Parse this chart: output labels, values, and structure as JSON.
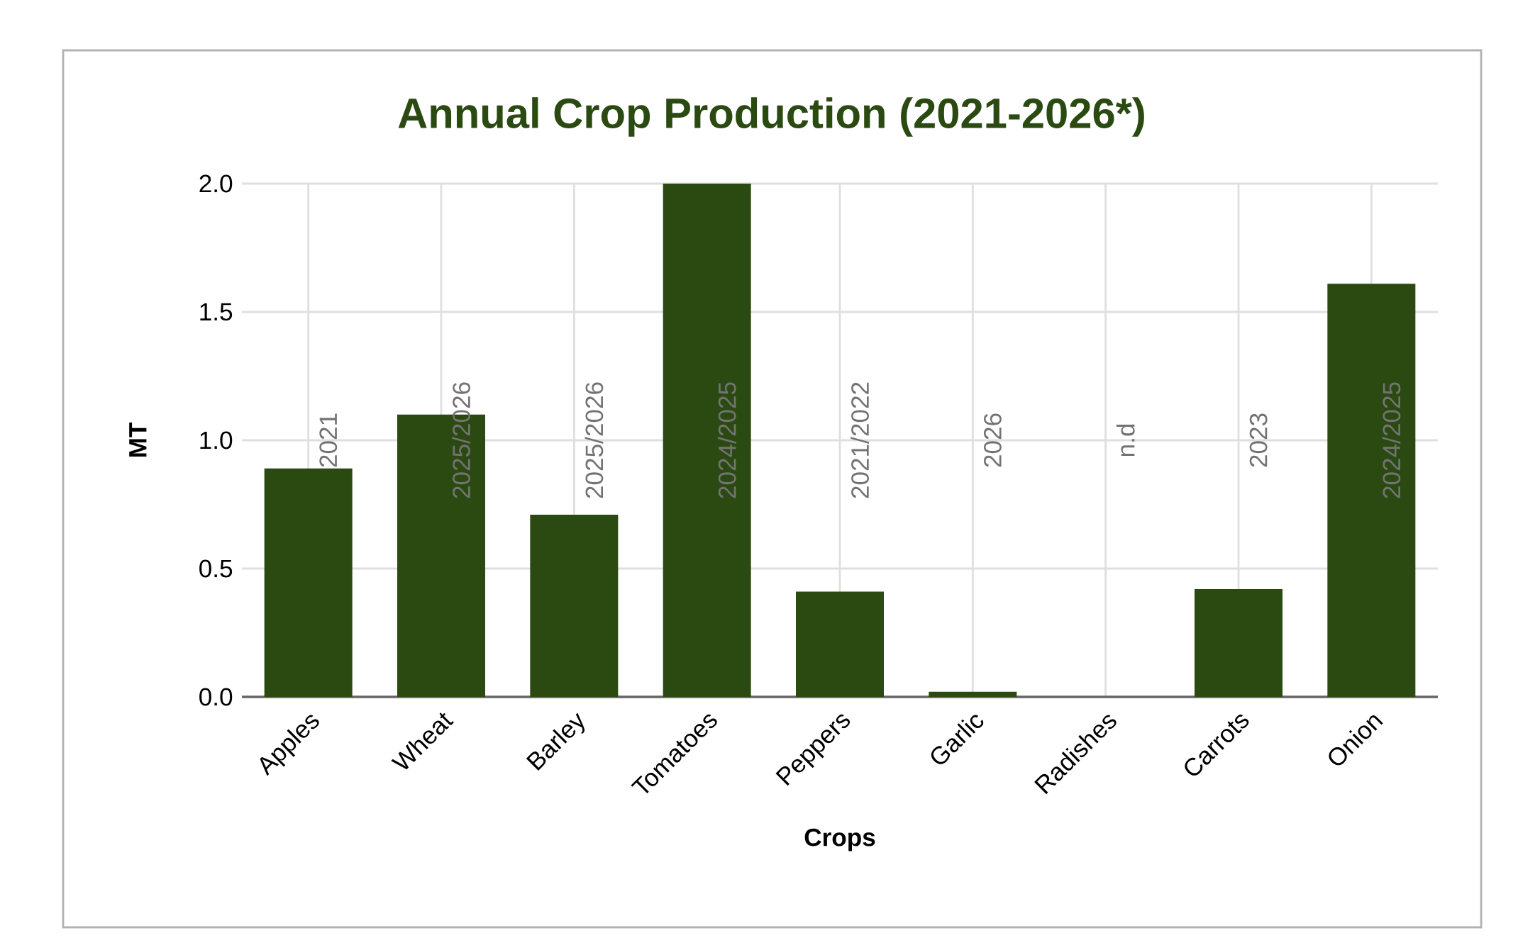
{
  "chart_data": {
    "type": "bar",
    "title": "Annual Crop Production (2021-2026*)",
    "xlabel": "Crops",
    "ylabel": "MT",
    "categories": [
      "Apples",
      "Wheat",
      "Barley",
      "Tomatoes",
      "Peppers",
      "Garlic",
      "Radishes",
      "Carrots",
      "Onion"
    ],
    "values": [
      0.89,
      1.1,
      0.71,
      2.0,
      0.41,
      0.02,
      null,
      0.42,
      1.61
    ],
    "annotations": [
      "2021",
      "2025/2026",
      "2025/2026",
      "2024/2025",
      "2021/2022",
      "2026",
      "n.d",
      "2023",
      "2024/2025"
    ],
    "color": "#2b4a12",
    "ylim": [
      0,
      2
    ],
    "yticks": [
      {
        "value": 0,
        "label": "0.0"
      },
      {
        "value": 0.5,
        "label": "0.5"
      },
      {
        "value": 1,
        "label": "1.0"
      },
      {
        "value": 1.5,
        "label": "1.5"
      },
      {
        "value": 2,
        "label": "2.0"
      }
    ],
    "grid": true
  }
}
